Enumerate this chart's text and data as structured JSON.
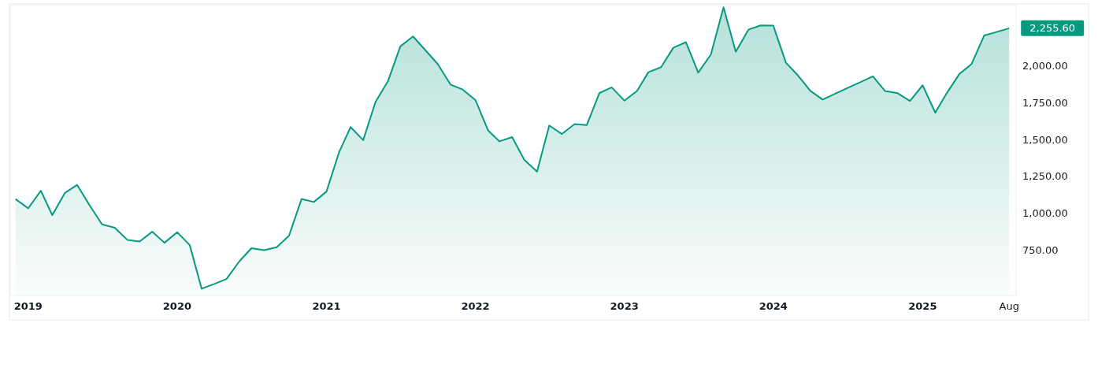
{
  "chart_data": {
    "type": "area",
    "color": "#089981",
    "grid": false,
    "x": [
      "2018-12",
      "2019-01",
      "2019-02",
      "2019-03",
      "2019-04",
      "2019-05",
      "2019-06",
      "2019-07",
      "2019-08",
      "2019-09",
      "2019-10",
      "2019-11",
      "2019-12",
      "2020-01",
      "2020-02",
      "2020-03",
      "2020-04",
      "2020-05",
      "2020-06",
      "2020-07",
      "2020-08",
      "2020-09",
      "2020-10",
      "2020-11",
      "2020-12",
      "2021-01",
      "2021-02",
      "2021-03",
      "2021-04",
      "2021-05",
      "2021-06",
      "2021-07",
      "2021-08",
      "2021-09",
      "2021-10",
      "2021-11",
      "2021-12",
      "2022-01",
      "2022-02",
      "2022-03",
      "2022-04",
      "2022-05",
      "2022-06",
      "2022-07",
      "2022-08",
      "2022-09",
      "2022-10",
      "2022-11",
      "2022-12",
      "2023-01",
      "2023-02",
      "2023-03",
      "2023-04",
      "2023-05",
      "2023-06",
      "2023-07",
      "2023-08",
      "2023-09",
      "2023-10",
      "2023-11",
      "2023-12",
      "2024-01",
      "2024-02",
      "2024-03",
      "2024-04",
      "2024-05",
      "2024-06",
      "2024-07",
      "2024-08",
      "2024-09",
      "2024-10",
      "2024-11",
      "2024-12",
      "2025-01",
      "2025-02",
      "2025-03",
      "2025-04",
      "2025-05",
      "2025-06",
      "2025-07",
      "2025-08"
    ],
    "values": [
      1095,
      1032,
      1152,
      986,
      1137,
      1191,
      1050,
      923,
      900,
      818,
      807,
      873,
      798,
      870,
      782,
      486,
      518,
      552,
      670,
      761,
      748,
      768,
      845,
      1096,
      1075,
      1146,
      1414,
      1584,
      1495,
      1754,
      1898,
      2132,
      2200,
      2105,
      2011,
      1873,
      1839,
      1768,
      1562,
      1487,
      1516,
      1361,
      1282,
      1595,
      1537,
      1604,
      1598,
      1816,
      1854,
      1764,
      1829,
      1957,
      1991,
      2123,
      2161,
      1954,
      2077,
      2398,
      2096,
      2246,
      2275,
      2273,
      2021,
      1936,
      1830,
      1771,
      1811,
      1850,
      1889,
      1929,
      1829,
      1814,
      1762,
      1868,
      1682,
      1814,
      1945,
      2013,
      2207,
      2230,
      2255.6
    ],
    "xlim": [
      "2018-11-18",
      "2025-08-18"
    ],
    "xticks": [
      {
        "value": "2019-01",
        "label": "2019"
      },
      {
        "value": "2020-01",
        "label": "2020"
      },
      {
        "value": "2021-01",
        "label": "2021"
      },
      {
        "value": "2022-01",
        "label": "2022"
      },
      {
        "value": "2023-01",
        "label": "2023"
      },
      {
        "value": "2024-01",
        "label": "2024"
      },
      {
        "value": "2025-01",
        "label": "2025"
      },
      {
        "value": "2025-08",
        "label": "Aug"
      }
    ],
    "ylim": [
      440,
      2410
    ],
    "yticks": [
      {
        "value": 750,
        "label": "750.00"
      },
      {
        "value": 1000,
        "label": "1,000.00"
      },
      {
        "value": 1250,
        "label": "1,250.00"
      },
      {
        "value": 1500,
        "label": "1,500.00"
      },
      {
        "value": 1750,
        "label": "1,750.00"
      },
      {
        "value": 2000,
        "label": "2,000.00"
      }
    ],
    "annotations": [
      {
        "text": "2,255.60",
        "x": "2025-08",
        "y": 2255.6
      }
    ]
  }
}
